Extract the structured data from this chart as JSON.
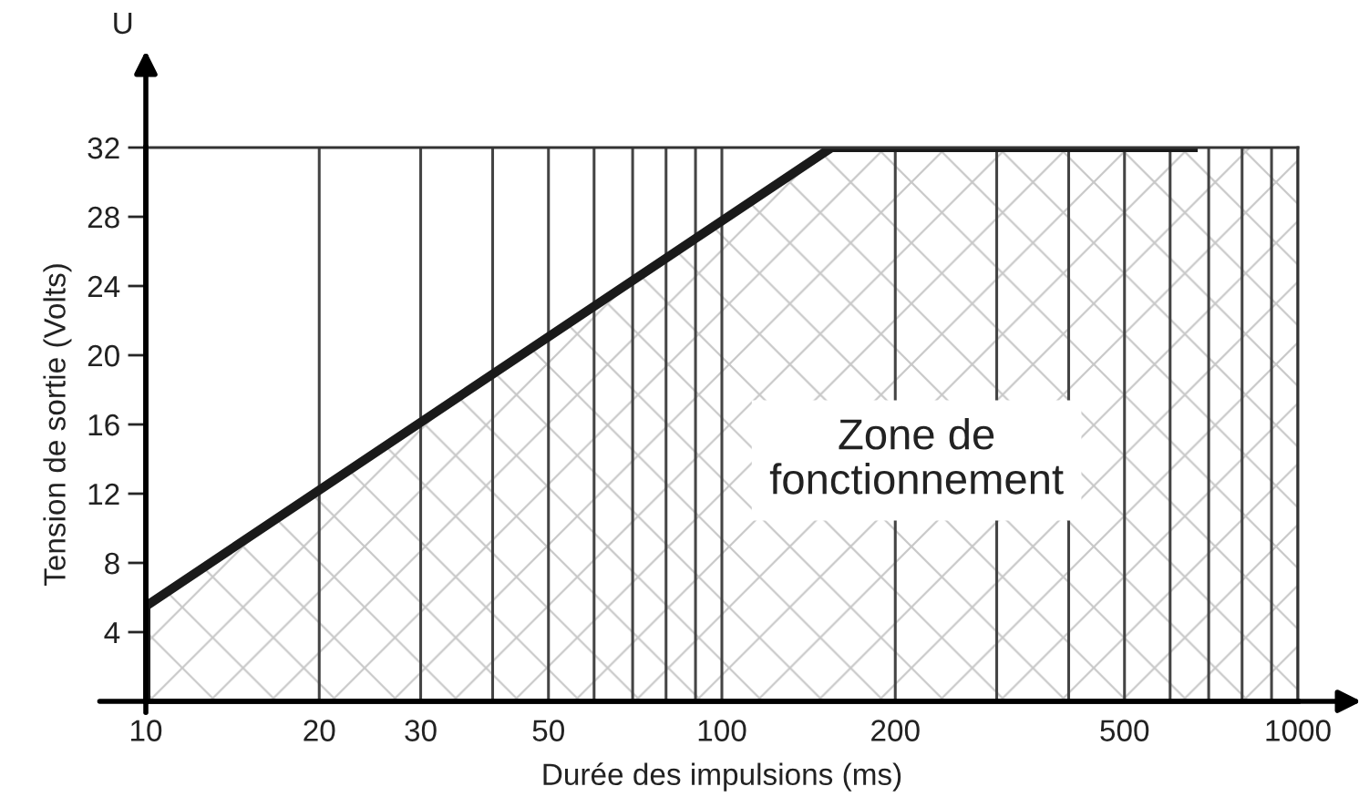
{
  "chart_data": {
    "type": "line",
    "xlabel": "Durée des impulsions (ms)",
    "ylabel": "Tension de sortie (Volts)",
    "annotations": [
      "U",
      "Zone de\nfonctionnement"
    ],
    "log": "x",
    "xlim": [
      10,
      1000
    ],
    "ylim": [
      0,
      32
    ],
    "xticks": [
      10,
      20,
      30,
      {
        "value": 40,
        "label": null
      },
      50,
      {
        "value": 60,
        "label": null
      },
      {
        "value": 70,
        "label": null
      },
      {
        "value": 80,
        "label": null
      },
      {
        "value": 90,
        "label": null
      },
      100,
      200,
      {
        "value": 300,
        "label": null
      },
      {
        "value": 400,
        "label": null
      },
      500,
      {
        "value": 600,
        "label": null
      },
      {
        "value": 700,
        "label": null
      },
      {
        "value": 800,
        "label": null
      },
      {
        "value": 900,
        "label": null
      },
      1000
    ],
    "yticks": [
      4,
      8,
      12,
      16,
      20,
      24,
      28,
      32
    ],
    "grid": "x",
    "series": [
      {
        "type": "area",
        "color": "#c8c8c8",
        "x": [
          10,
          155,
          1000
        ],
        "values": [
          5.5,
          32,
          32
        ]
      },
      {
        "type": "line",
        "color": "#1a1a1a",
        "x": [
          10,
          10,
          155,
          670
        ],
        "values": [
          0,
          5.5,
          32,
          32
        ]
      }
    ]
  }
}
